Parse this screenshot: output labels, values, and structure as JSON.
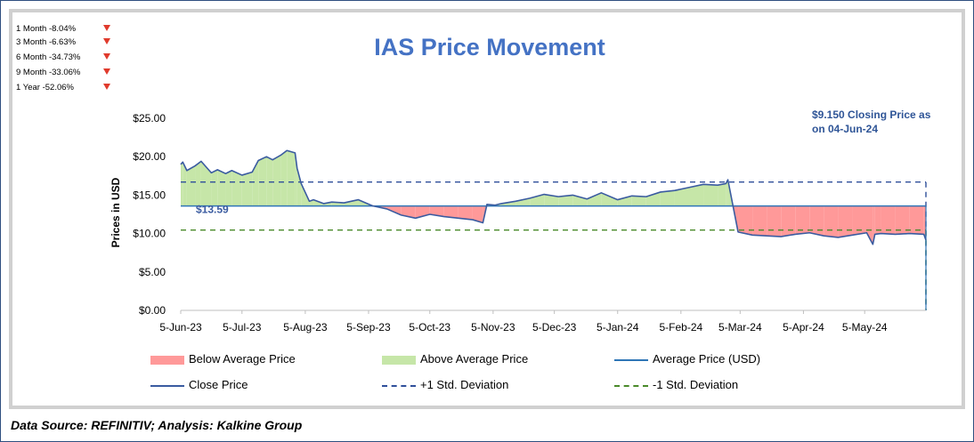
{
  "performance": [
    {
      "label": "1 Month -8.04%"
    },
    {
      "label": "3 Month -6.63%"
    },
    {
      "label": "6 Month -34.73%"
    },
    {
      "label": "9 Month -33.06%"
    },
    {
      "label": "1 Year -52.06%"
    }
  ],
  "footer": "Data Source: REFINITIV; Analysis: Kalkine Group",
  "colors": {
    "close": "#3a5ba0",
    "average": "#2e75b6",
    "plus_std": "#2f4f9a",
    "minus_std": "#4a8a2a",
    "below_fill": "#ff9999",
    "above_fill": "#c6e6a8",
    "title": "#4472c4",
    "arrow": "#e03a2c"
  },
  "chart_data": {
    "type": "line",
    "title": "IAS Price Movement",
    "ylabel": "Prices in USD",
    "xlabel": "",
    "ylim": [
      0,
      25
    ],
    "yticks": [
      "$0.00",
      "$5.00",
      "$10.00",
      "$15.00",
      "$20.00",
      "$25.00"
    ],
    "xticks": [
      "5-Jun-23",
      "5-Jul-23",
      "5-Aug-23",
      "5-Sep-23",
      "5-Oct-23",
      "5-Nov-23",
      "5-Dec-23",
      "5-Jan-24",
      "5-Feb-24",
      "5-Mar-24",
      "5-Apr-24",
      "5-May-24"
    ],
    "average_price": 13.59,
    "average_label": "$13.59",
    "plus_1_std": 16.7,
    "minus_1_std": 10.45,
    "closing_annotation": "$9.150 Closing Price as on 04-Jun-24",
    "close_price": {
      "dates": [
        "2023-06-05",
        "2023-06-06",
        "2023-06-08",
        "2023-06-12",
        "2023-06-15",
        "2023-06-20",
        "2023-06-23",
        "2023-06-27",
        "2023-06-30",
        "2023-07-05",
        "2023-07-10",
        "2023-07-13",
        "2023-07-17",
        "2023-07-20",
        "2023-07-24",
        "2023-07-27",
        "2023-07-31",
        "2023-08-01",
        "2023-08-03",
        "2023-08-07",
        "2023-08-09",
        "2023-08-14",
        "2023-08-18",
        "2023-08-24",
        "2023-08-31",
        "2023-09-07",
        "2023-09-14",
        "2023-09-21",
        "2023-09-28",
        "2023-10-05",
        "2023-10-12",
        "2023-10-19",
        "2023-10-26",
        "2023-10-31",
        "2023-11-02",
        "2023-11-06",
        "2023-11-09",
        "2023-11-16",
        "2023-11-23",
        "2023-11-30",
        "2023-12-07",
        "2023-12-14",
        "2023-12-21",
        "2023-12-28",
        "2024-01-05",
        "2024-01-12",
        "2024-01-19",
        "2024-01-26",
        "2024-02-02",
        "2024-02-09",
        "2024-02-16",
        "2024-02-23",
        "2024-02-27",
        "2024-02-28",
        "2024-03-04",
        "2024-03-11",
        "2024-03-18",
        "2024-03-25",
        "2024-04-01",
        "2024-04-08",
        "2024-04-15",
        "2024-04-22",
        "2024-04-29",
        "2024-05-06",
        "2024-05-09",
        "2024-05-10",
        "2024-05-13",
        "2024-05-20",
        "2024-05-27",
        "2024-06-03",
        "2024-06-04"
      ],
      "values": [
        19.0,
        19.3,
        18.2,
        18.8,
        19.4,
        17.9,
        18.3,
        17.8,
        18.2,
        17.6,
        18.0,
        19.5,
        20.0,
        19.6,
        20.2,
        20.8,
        20.5,
        18.5,
        16.5,
        14.2,
        14.4,
        13.9,
        14.1,
        14.0,
        14.4,
        13.6,
        13.2,
        12.4,
        12.0,
        12.5,
        12.2,
        12.0,
        11.8,
        11.4,
        13.8,
        13.7,
        13.9,
        14.2,
        14.6,
        15.1,
        14.8,
        15.0,
        14.5,
        15.3,
        14.4,
        14.9,
        14.8,
        15.4,
        15.6,
        16.0,
        16.4,
        16.3,
        16.5,
        17.0,
        10.2,
        9.8,
        9.7,
        9.6,
        9.9,
        10.1,
        9.7,
        9.5,
        9.8,
        10.1,
        8.6,
        9.9,
        10.0,
        9.9,
        10.0,
        9.9,
        9.15
      ]
    },
    "legend": [
      {
        "name": "Below Average Price"
      },
      {
        "name": "Above Average Price"
      },
      {
        "name": "Average Price (USD)"
      },
      {
        "name": "Close Price"
      },
      {
        "name": "+1 Std. Deviation"
      },
      {
        "name": "-1 Std. Deviation"
      }
    ]
  }
}
